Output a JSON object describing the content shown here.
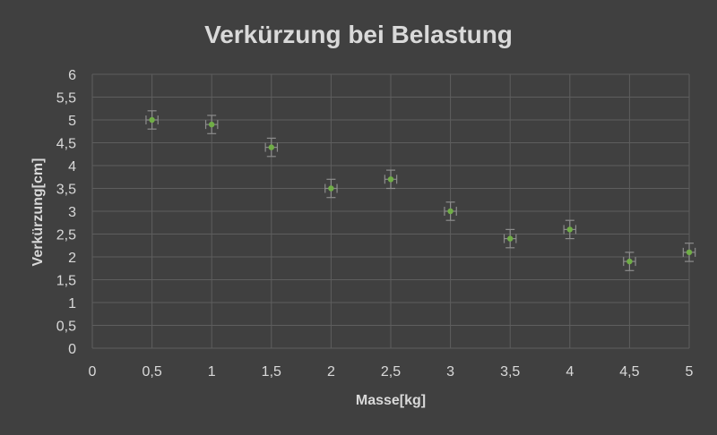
{
  "chart_data": {
    "type": "scatter",
    "title": "Verkürzung bei Belastung",
    "xlabel": "Masse[kg]",
    "ylabel": "Verkürzung[cm]",
    "xlim": [
      0,
      5
    ],
    "ylim": [
      0,
      6
    ],
    "x_ticks": [
      "0",
      "0,5",
      "1",
      "1,5",
      "2",
      "2,5",
      "3",
      "3,5",
      "4",
      "4,5",
      "5"
    ],
    "y_ticks": [
      "0",
      "0,5",
      "1",
      "1,5",
      "2",
      "2,5",
      "3",
      "3,5",
      "4",
      "4,5",
      "5",
      "5,5",
      "6"
    ],
    "grid": true,
    "legend": "none",
    "marker_color": "#70ad47",
    "error_bar_color": "#8c8c8c",
    "series": [
      {
        "x": [
          0.5,
          1.0,
          1.5,
          2.0,
          2.5,
          3.0,
          3.5,
          4.0,
          4.5,
          5.0
        ],
        "y": [
          5.0,
          4.9,
          4.4,
          3.5,
          3.7,
          3.0,
          2.4,
          2.6,
          1.9,
          2.1
        ],
        "x_error": 0.05,
        "y_error": 0.2
      }
    ]
  }
}
